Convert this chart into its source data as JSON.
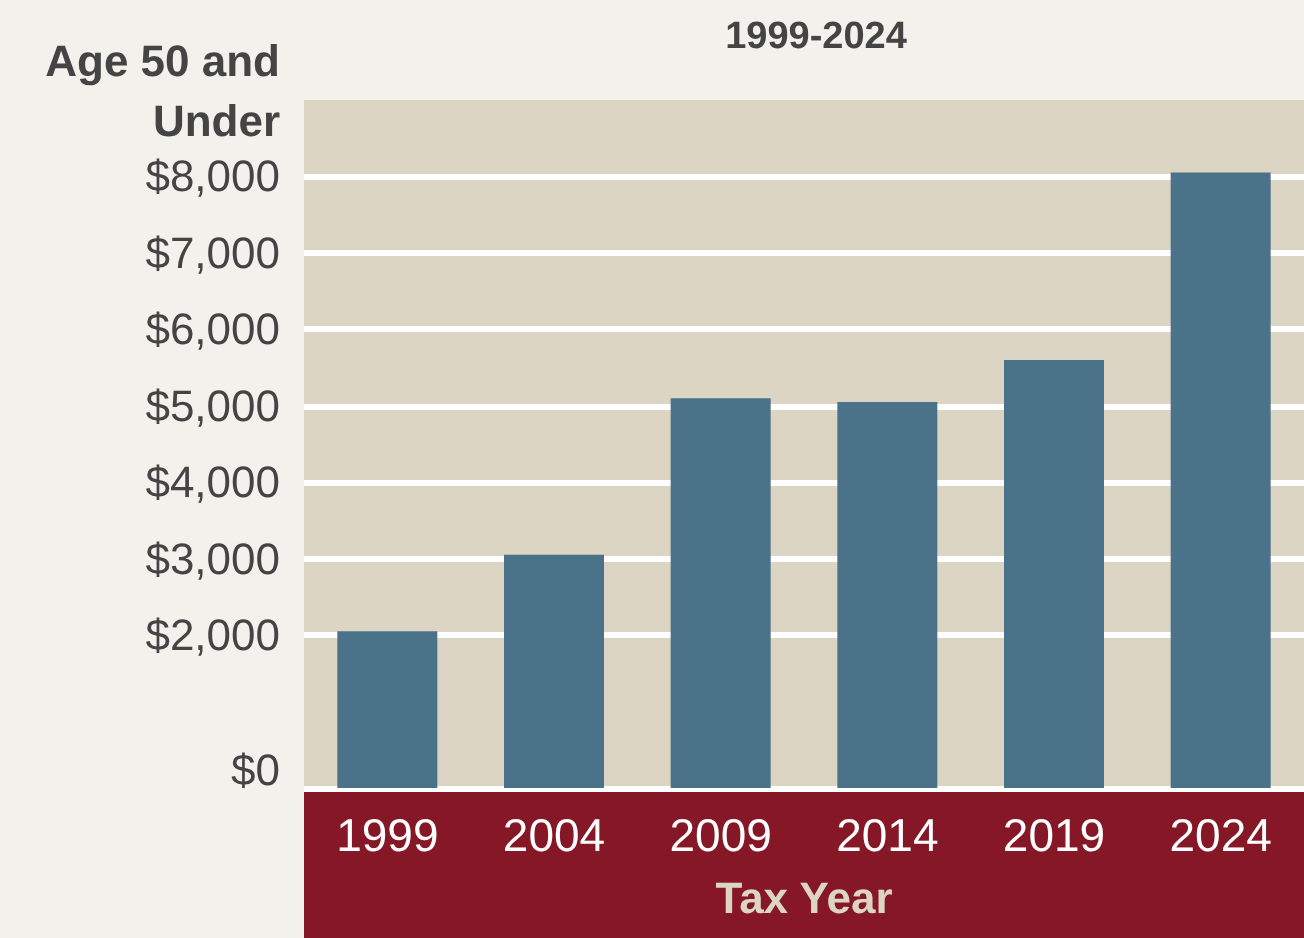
{
  "chart_data": {
    "type": "bar",
    "title": "1999-2024",
    "xlabel": "Tax Year",
    "ylabel": "Age 50 and Under",
    "categories": [
      "1999",
      "2004",
      "2009",
      "2014",
      "2019",
      "2024"
    ],
    "values": [
      2050,
      3050,
      5100,
      5050,
      5600,
      8050
    ],
    "color": "#4a7289",
    "ylim": [
      0,
      9000
    ],
    "yticks": [
      {
        "value": 0,
        "label": "$0"
      },
      {
        "value": 2000,
        "label": "$2,000"
      },
      {
        "value": 3000,
        "label": "$3,000"
      },
      {
        "value": 4000,
        "label": "$4,000"
      },
      {
        "value": 5000,
        "label": "$5,000"
      },
      {
        "value": 6000,
        "label": "$6,000"
      },
      {
        "value": 7000,
        "label": "$7,000"
      },
      {
        "value": 8000,
        "label": "$8,000"
      }
    ],
    "grid": "y"
  }
}
